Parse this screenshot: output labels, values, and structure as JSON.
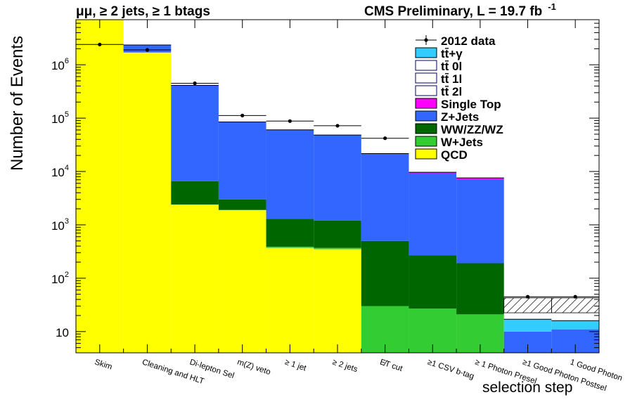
{
  "chart_data": {
    "type": "bar",
    "title_left": "μμ, ≥ 2 jets, ≥ 1 btags",
    "title_right": "CMS Preliminary, L = 19.7 fb",
    "title_right_sup": "-1",
    "xlabel": "selection step",
    "ylabel": "Number of Events",
    "yscale": "log",
    "ylim": [
      4,
      7000000
    ],
    "categories": [
      "Skim",
      "Cleaning and HLT",
      "Di-lepton Sel",
      "m(Z) veto",
      "≥ 1 jet",
      "≥ 2 jets",
      "E̸T cut",
      "≥1 CSV b-tag",
      "≥ 1 Photon Presel",
      "≥1 Good Photon Postsel",
      "1 Good Photon"
    ],
    "y_ticks": [
      {
        "value": 10,
        "label": "10"
      },
      {
        "value": 100,
        "label": "10",
        "sup": "2"
      },
      {
        "value": 1000,
        "label": "10",
        "sup": "3"
      },
      {
        "value": 10000,
        "label": "10",
        "sup": "4"
      },
      {
        "value": 100000,
        "label": "10",
        "sup": "5"
      },
      {
        "value": 1000000,
        "label": "10",
        "sup": "6"
      }
    ],
    "stack_series": [
      {
        "name": "QCD",
        "color": "#ffff00",
        "values": [
          7000000,
          1700000,
          2400,
          1900,
          370,
          350,
          0,
          0,
          0,
          0,
          0
        ]
      },
      {
        "name": "W+Jets",
        "color": "#33cc33",
        "values": [
          0,
          0,
          0,
          0,
          20,
          20,
          30,
          27,
          21,
          0,
          0
        ]
      },
      {
        "name": "WW/ZZ/WZ",
        "color": "#006600",
        "values": [
          0,
          0,
          4200,
          1100,
          900,
          830,
          470,
          240,
          170,
          0,
          0
        ]
      },
      {
        "name": "Z+Jets",
        "color": "#3366ff",
        "values": [
          0,
          650000,
          405000,
          82000,
          59000,
          47000,
          21000,
          9000,
          7000,
          10,
          11
        ]
      },
      {
        "name": "Single Top",
        "color": "#ff00ff",
        "values": [
          0,
          0,
          0,
          0,
          0,
          0,
          200,
          400,
          400,
          0,
          0
        ]
      },
      {
        "name": "tt̄+γ",
        "color": "#33ccff",
        "values": [
          0,
          0,
          0,
          0,
          0,
          0,
          0,
          0,
          0,
          7,
          5
        ]
      }
    ],
    "data_series": {
      "name": "2012 data",
      "values": [
        2400000,
        1900000,
        450000,
        112000,
        88000,
        72000,
        42000,
        0,
        0,
        45,
        45
      ]
    },
    "legend": [
      {
        "label": "2012 data",
        "style": "marker"
      },
      {
        "label": "tt̄+γ",
        "color": "#33ccff"
      },
      {
        "label": "tt̄ 0l",
        "color": "#ffffff"
      },
      {
        "label": "tt̄ 1l",
        "color": "#ffffff"
      },
      {
        "label": "tt̄ 2l",
        "color": "#ffffff"
      },
      {
        "label": "Single Top",
        "color": "#ff00ff"
      },
      {
        "label": "Z+Jets",
        "color": "#3366ff"
      },
      {
        "label": "WW/ZZ/WZ",
        "color": "#006600"
      },
      {
        "label": "W+Jets",
        "color": "#33cc33"
      },
      {
        "label": "QCD",
        "color": "#ffff00"
      }
    ],
    "legend_position": "top-right",
    "grid": false
  }
}
